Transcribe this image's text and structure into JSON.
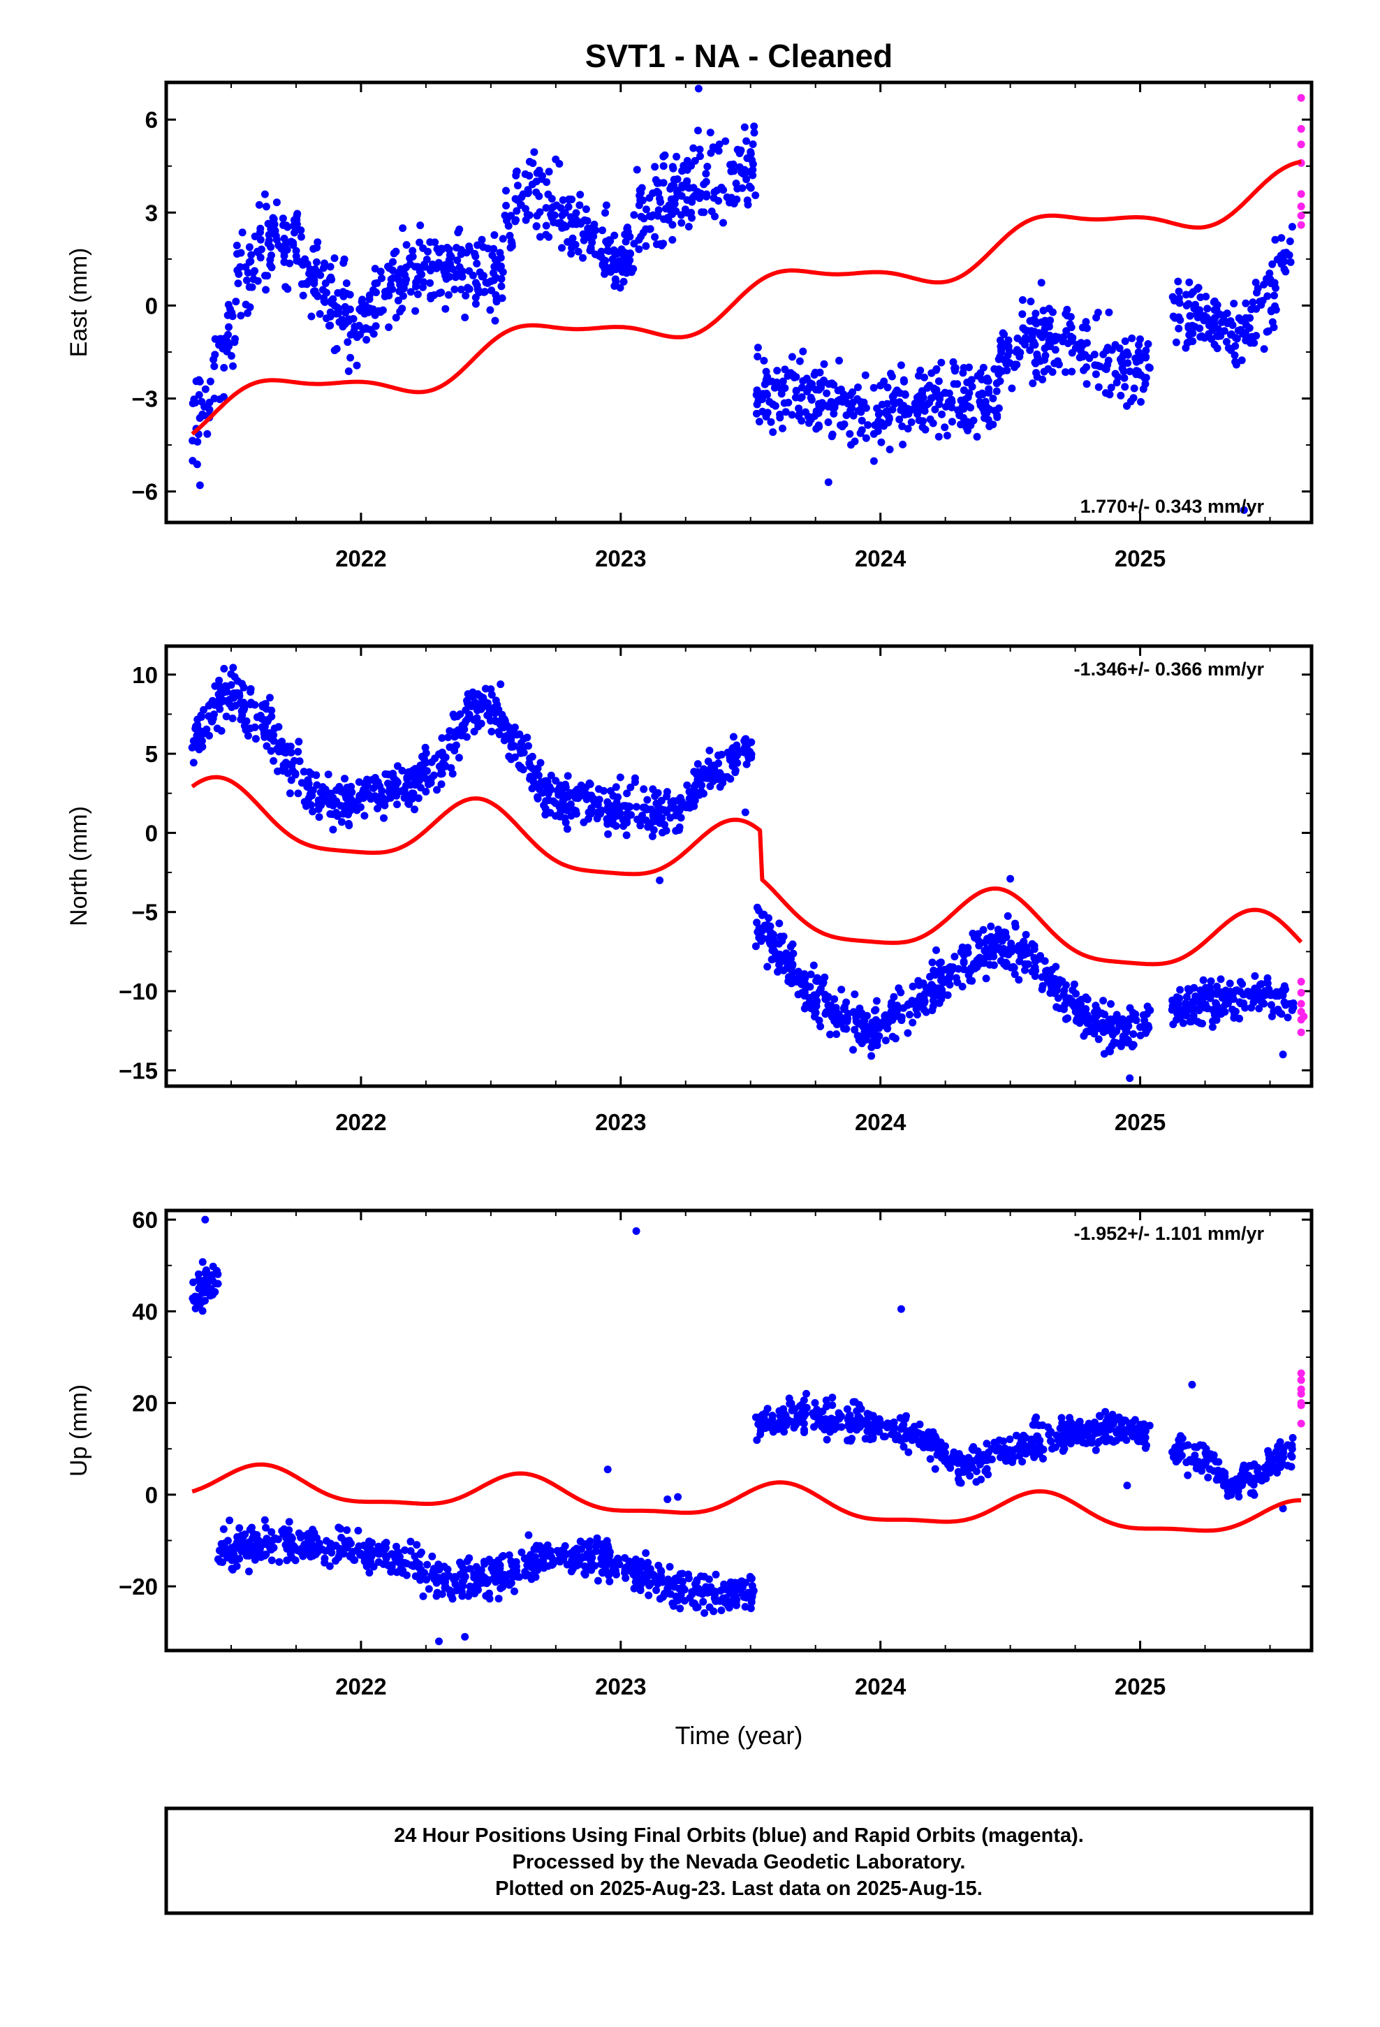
{
  "title": "SVT1  - NA - Cleaned",
  "x_axis_label": "Time (year)",
  "footer_lines": [
    "24 Hour Positions Using Final Orbits (blue) and Rapid Orbits (magenta).",
    "Processed by the Nevada Geodetic Laboratory.",
    "Plotted on 2025-Aug-23. Last data on 2025-Aug-15."
  ],
  "colors": {
    "final_orbits": "#0000ff",
    "rapid_orbits": "#ff22ee",
    "model": "#ff0000",
    "frame": "#000000"
  },
  "chart_data": [
    {
      "type": "scatter",
      "panel": "east",
      "ylabel": "East (mm)",
      "ylim": [
        -7,
        7.2
      ],
      "yticks": [
        -6,
        -3,
        0,
        3,
        6
      ],
      "xlim": [
        2021.25,
        2025.66
      ],
      "xticks": [
        2022,
        2023,
        2024,
        2025
      ],
      "rate_label": "1.770+/- 0.343 mm/yr",
      "rate_label_position": "bottom-right",
      "series": [
        {
          "name": "Final Orbits (blue)",
          "color": "#0000ff",
          "segments": [
            {
              "x0": 2021.35,
              "x1": 2021.95,
              "anchors": [
                [
                  2021.35,
                  -3.8
                ],
                [
                  2021.45,
                  -2.5
                ],
                [
                  2021.52,
                  0.3
                ],
                [
                  2021.62,
                  1.8
                ],
                [
                  2021.72,
                  2.2
                ],
                [
                  2021.85,
                  0.9
                ],
                [
                  2021.95,
                  -0.4
                ]
              ],
              "spread": 1.3,
              "n": 220
            },
            {
              "x0": 2021.95,
              "x1": 2022.55,
              "anchors": [
                [
                  2021.95,
                  -0.8
                ],
                [
                  2022.1,
                  0.5
                ],
                [
                  2022.25,
                  1.3
                ],
                [
                  2022.4,
                  1.2
                ],
                [
                  2022.55,
                  1.1
                ]
              ],
              "spread": 1.1,
              "n": 220
            },
            {
              "x0": 2022.55,
              "x1": 2023.05,
              "anchors": [
                [
                  2022.55,
                  2.7
                ],
                [
                  2022.7,
                  3.6
                ],
                [
                  2022.85,
                  2.2
                ],
                [
                  2023.0,
                  1.5
                ],
                [
                  2023.05,
                  1.8
                ]
              ],
              "spread": 1.1,
              "n": 190
            },
            {
              "x0": 2023.05,
              "x1": 2023.52,
              "anchors": [
                [
                  2023.05,
                  2.6
                ],
                [
                  2023.2,
                  3.5
                ],
                [
                  2023.35,
                  4.2
                ],
                [
                  2023.52,
                  4.5
                ]
              ],
              "spread": 1.2,
              "n": 170
            },
            {
              "x0": 2023.52,
              "x1": 2024.45,
              "anchors": [
                [
                  2023.52,
                  -2.8
                ],
                [
                  2023.7,
                  -2.7
                ],
                [
                  2023.95,
                  -3.6
                ],
                [
                  2024.2,
                  -2.9
                ],
                [
                  2024.45,
                  -3.0
                ]
              ],
              "spread": 1.1,
              "n": 330
            },
            {
              "x0": 2024.45,
              "x1": 2025.04,
              "anchors": [
                [
                  2024.45,
                  -2.0
                ],
                [
                  2024.6,
                  -0.9
                ],
                [
                  2024.75,
                  -1.2
                ],
                [
                  2024.9,
                  -1.9
                ],
                [
                  2025.04,
                  -2.2
                ]
              ],
              "spread": 1.0,
              "n": 210
            },
            {
              "x0": 2025.12,
              "x1": 2025.59,
              "anchors": [
                [
                  2025.12,
                  -0.3
                ],
                [
                  2025.25,
                  -0.4
                ],
                [
                  2025.4,
                  -0.9
                ],
                [
                  2025.5,
                  0.2
                ],
                [
                  2025.59,
                  2.5
                ]
              ],
              "spread": 1.0,
              "n": 160
            }
          ],
          "outliers": [
            [
              2021.38,
              -5.8
            ],
            [
              2023.8,
              -5.7
            ],
            [
              2025.4,
              -6.6
            ],
            [
              2023.3,
              7.0
            ]
          ]
        },
        {
          "name": "Rapid Orbits (magenta)",
          "color": "#ff22ee",
          "points": [
            [
              2025.62,
              6.7
            ],
            [
              2025.62,
              5.7
            ],
            [
              2025.62,
              5.2
            ],
            [
              2025.62,
              4.6
            ],
            [
              2025.62,
              3.6
            ],
            [
              2025.62,
              3.2
            ],
            [
              2025.62,
              2.9
            ],
            [
              2025.62,
              2.6
            ]
          ]
        },
        {
          "name": "Model",
          "color": "#ff0000",
          "type": "line",
          "x_range": [
            2021.35,
            2025.62
          ],
          "intercept": -3.6,
          "slope": 1.77,
          "annual_amplitude": 0.62,
          "annual_peak": 2021.7,
          "semiannual_amplitude": 0.22,
          "semiannual_peak": 2021.55
        }
      ]
    },
    {
      "type": "scatter",
      "panel": "north",
      "ylabel": "North (mm)",
      "ylim": [
        -16,
        11.8
      ],
      "yticks": [
        -15,
        -10,
        -5,
        0,
        5,
        10
      ],
      "xlim": [
        2021.25,
        2025.66
      ],
      "xticks": [
        2022,
        2023,
        2024,
        2025
      ],
      "rate_label": "-1.346+/- 0.366 mm/yr",
      "rate_label_position": "top-right",
      "series": [
        {
          "name": "Final Orbits (blue)",
          "color": "#0000ff",
          "segments": [
            {
              "x0": 2021.35,
              "x1": 2021.95,
              "anchors": [
                [
                  2021.35,
                  5.5
                ],
                [
                  2021.48,
                  9.0
                ],
                [
                  2021.6,
                  7.5
                ],
                [
                  2021.8,
                  2.5
                ],
                [
                  2021.95,
                  2.0
                ]
              ],
              "spread": 1.4,
              "n": 230
            },
            {
              "x0": 2021.95,
              "x1": 2022.55,
              "anchors": [
                [
                  2021.95,
                  2.0
                ],
                [
                  2022.15,
                  2.8
                ],
                [
                  2022.3,
                  4.0
                ],
                [
                  2022.42,
                  8.0
                ],
                [
                  2022.55,
                  7.5
                ]
              ],
              "spread": 1.4,
              "n": 230
            },
            {
              "x0": 2022.55,
              "x1": 2023.25,
              "anchors": [
                [
                  2022.55,
                  6.5
                ],
                [
                  2022.72,
                  2.5
                ],
                [
                  2022.95,
                  1.6
                ],
                [
                  2023.1,
                  1.2
                ],
                [
                  2023.25,
                  1.5
                ]
              ],
              "spread": 1.3,
              "n": 260
            },
            {
              "x0": 2023.25,
              "x1": 2023.52,
              "anchors": [
                [
                  2023.25,
                  2.0
                ],
                [
                  2023.35,
                  4.0
                ],
                [
                  2023.52,
                  5.5
                ]
              ],
              "spread": 1.1,
              "n": 110
            },
            {
              "x0": 2023.52,
              "x1": 2024.0,
              "anchors": [
                [
                  2023.52,
                  -5.5
                ],
                [
                  2023.6,
                  -7.5
                ],
                [
                  2023.75,
                  -10.5
                ],
                [
                  2023.95,
                  -12.5
                ],
                [
                  2024.0,
                  -12.0
                ]
              ],
              "spread": 1.4,
              "n": 230
            },
            {
              "x0": 2024.0,
              "x1": 2024.6,
              "anchors": [
                [
                  2024.0,
                  -12.0
                ],
                [
                  2024.15,
                  -10.5
                ],
                [
                  2024.3,
                  -8.5
                ],
                [
                  2024.45,
                  -7.0
                ],
                [
                  2024.6,
                  -8.0
                ]
              ],
              "spread": 1.3,
              "n": 230
            },
            {
              "x0": 2024.6,
              "x1": 2025.04,
              "anchors": [
                [
                  2024.6,
                  -8.5
                ],
                [
                  2024.75,
                  -11.0
                ],
                [
                  2024.9,
                  -12.5
                ],
                [
                  2025.04,
                  -12.0
                ]
              ],
              "spread": 1.2,
              "n": 170
            },
            {
              "x0": 2025.12,
              "x1": 2025.59,
              "anchors": [
                [
                  2025.12,
                  -11.0
                ],
                [
                  2025.3,
                  -10.8
                ],
                [
                  2025.45,
                  -10.2
                ],
                [
                  2025.59,
                  -10.8
                ]
              ],
              "spread": 1.1,
              "n": 170
            }
          ],
          "outliers": [
            [
              2023.48,
              1.3
            ],
            [
              2023.15,
              -3.0
            ],
            [
              2024.96,
              -15.5
            ],
            [
              2025.55,
              -14.0
            ],
            [
              2024.5,
              -2.9
            ]
          ]
        },
        {
          "name": "Rapid Orbits (magenta)",
          "color": "#ff22ee",
          "points": [
            [
              2025.62,
              -9.4
            ],
            [
              2025.62,
              -10.1
            ],
            [
              2025.62,
              -10.8
            ],
            [
              2025.62,
              -11.3
            ],
            [
              2025.62,
              -11.8
            ],
            [
              2025.62,
              -12.6
            ],
            [
              2025.63,
              -11.6
            ]
          ]
        },
        {
          "name": "Model",
          "color": "#ff0000",
          "type": "line",
          "x_range": [
            2021.35,
            2025.62
          ],
          "intercept": 1.15,
          "slope": -1.346,
          "annual_amplitude": 2.0,
          "annual_peak": 2021.45,
          "semiannual_amplitude": 0.5,
          "semiannual_peak": 2021.45,
          "offsets": [
            [
              2023.54,
              -3.0
            ]
          ]
        }
      ]
    },
    {
      "type": "scatter",
      "panel": "up",
      "ylabel": "Up (mm)",
      "ylim": [
        -34,
        62
      ],
      "yticks": [
        -20,
        0,
        20,
        40,
        60
      ],
      "xlim": [
        2021.25,
        2025.66
      ],
      "xticks": [
        2022,
        2023,
        2024,
        2025
      ],
      "rate_label": "-1.952+/- 1.101 mm/yr",
      "rate_label_position": "top-right",
      "series": [
        {
          "name": "Final Orbits (blue)",
          "color": "#0000ff",
          "segments": [
            {
              "x0": 2021.35,
              "x1": 2021.45,
              "anchors": [
                [
                  2021.35,
                  44.0
                ],
                [
                  2021.45,
                  48.0
                ]
              ],
              "spread": 4.5,
              "n": 45
            },
            {
              "x0": 2021.45,
              "x1": 2022.2,
              "anchors": [
                [
                  2021.45,
                  -12.0
                ],
                [
                  2021.7,
                  -10.0
                ],
                [
                  2021.95,
                  -12.0
                ],
                [
                  2022.2,
                  -15.0
                ]
              ],
              "spread": 3.6,
              "n": 270
            },
            {
              "x0": 2022.2,
              "x1": 2022.8,
              "anchors": [
                [
                  2022.2,
                  -16.0
                ],
                [
                  2022.35,
                  -19.0
                ],
                [
                  2022.55,
                  -17.0
                ],
                [
                  2022.8,
                  -13.0
                ]
              ],
              "spread": 3.8,
              "n": 220
            },
            {
              "x0": 2022.8,
              "x1": 2023.52,
              "anchors": [
                [
                  2022.8,
                  -14.0
                ],
                [
                  2023.0,
                  -15.0
                ],
                [
                  2023.2,
                  -20.0
                ],
                [
                  2023.35,
                  -22.0
                ],
                [
                  2023.52,
                  -21.0
                ]
              ],
              "spread": 3.8,
              "n": 260
            },
            {
              "x0": 2023.52,
              "x1": 2024.3,
              "anchors": [
                [
                  2023.52,
                  15.0
                ],
                [
                  2023.7,
                  17.5
                ],
                [
                  2023.95,
                  15.5
                ],
                [
                  2024.15,
                  13.0
                ],
                [
                  2024.3,
                  6.0
                ]
              ],
              "spread": 3.3,
              "n": 280
            },
            {
              "x0": 2024.3,
              "x1": 2025.04,
              "anchors": [
                [
                  2024.3,
                  6.0
                ],
                [
                  2024.5,
                  10.0
                ],
                [
                  2024.7,
                  13.0
                ],
                [
                  2024.9,
                  15.0
                ],
                [
                  2025.04,
                  12.0
                ]
              ],
              "spread": 3.3,
              "n": 270
            },
            {
              "x0": 2025.12,
              "x1": 2025.59,
              "anchors": [
                [
                  2025.12,
                  10.0
                ],
                [
                  2025.25,
                  8.0
                ],
                [
                  2025.35,
                  2.0
                ],
                [
                  2025.48,
                  5.0
                ],
                [
                  2025.59,
                  10.0
                ]
              ],
              "spread": 3.2,
              "n": 170
            }
          ],
          "outliers": [
            [
              2021.4,
              60.0
            ],
            [
              2023.06,
              57.5
            ],
            [
              2024.08,
              40.5
            ],
            [
              2022.3,
              -32.0
            ],
            [
              2022.4,
              -31.0
            ],
            [
              2022.95,
              5.5
            ],
            [
              2023.18,
              -1.0
            ],
            [
              2023.22,
              -0.5
            ],
            [
              2024.95,
              2.0
            ],
            [
              2025.55,
              -3.0
            ],
            [
              2025.2,
              24.0
            ]
          ]
        },
        {
          "name": "Rapid Orbits (magenta)",
          "color": "#ff22ee",
          "points": [
            [
              2025.62,
              26.5
            ],
            [
              2025.62,
              25.0
            ],
            [
              2025.62,
              23.0
            ],
            [
              2025.62,
              22.0
            ],
            [
              2025.62,
              20.0
            ],
            [
              2025.62,
              19.5
            ],
            [
              2025.62,
              15.5
            ]
          ]
        },
        {
          "name": "Model",
          "color": "#ff0000",
          "type": "line",
          "x_range": [
            2021.35,
            2025.62
          ],
          "intercept": 2.3,
          "slope": -1.952,
          "annual_amplitude": 3.6,
          "annual_peak": 2021.62,
          "semiannual_amplitude": 1.2,
          "semiannual_peak": 2021.62
        }
      ]
    }
  ]
}
